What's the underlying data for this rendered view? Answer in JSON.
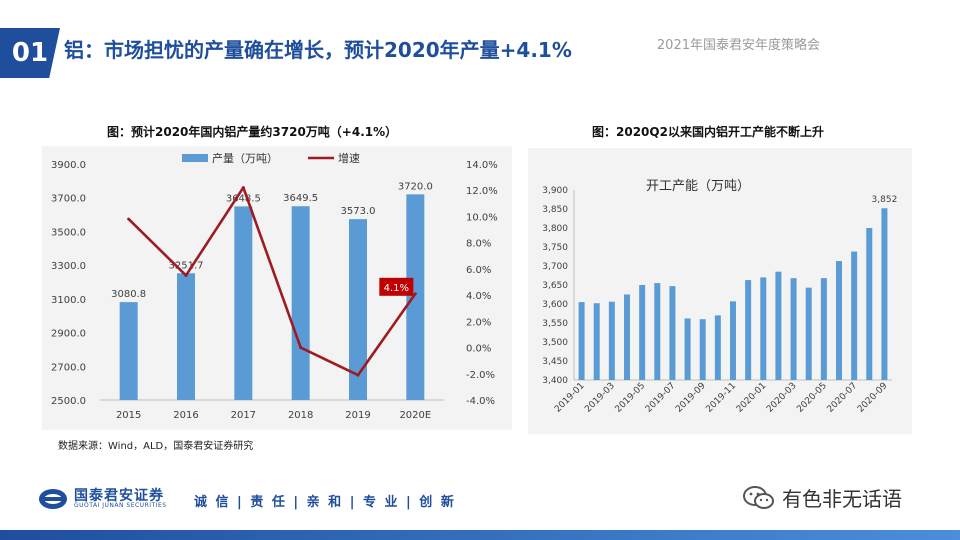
{
  "header": {
    "section_number": "01",
    "title": "铝：市场担忧的产量确在增长，预计2020年产量+4.1%",
    "conference": "2021年国泰君安年度策略会"
  },
  "colors": {
    "brand": "#1f4e9c",
    "bar": "#5b9bd5",
    "line": "#9e1b20",
    "callout": "#c00000"
  },
  "chart_data": [
    {
      "type": "bar+line",
      "title": "图：预计2020年国内铝产量约3720万吨（+4.1%）",
      "categories": [
        "2015",
        "2016",
        "2017",
        "2018",
        "2019",
        "2020E"
      ],
      "series": [
        {
          "name": "产量（万吨）",
          "type": "bar",
          "axis": "left",
          "values": [
            3080.8,
            3251.7,
            3648.5,
            3649.5,
            3573.0,
            3720.0
          ],
          "labels": [
            "3080.8",
            "3251.7",
            "3648.5",
            "3649.5",
            "3573.0",
            "3720.0"
          ]
        },
        {
          "name": "增速",
          "type": "line",
          "axis": "right",
          "values": [
            9.8,
            5.5,
            12.2,
            0.0,
            -2.1,
            4.1
          ]
        }
      ],
      "left_axis": {
        "ylim": [
          2500,
          3900
        ],
        "ticks": [
          "2500.0",
          "2700.0",
          "2900.0",
          "3100.0",
          "3300.0",
          "3500.0",
          "3700.0",
          "3900.0"
        ]
      },
      "right_axis": {
        "ylim": [
          -4,
          14
        ],
        "ticks": [
          "-4.0%",
          "-2.0%",
          "0.0%",
          "2.0%",
          "4.0%",
          "6.0%",
          "8.0%",
          "10.0%",
          "12.0%",
          "14.0%"
        ]
      },
      "annotation": {
        "text": "4.1%",
        "category": "2020E"
      },
      "legend": "top"
    },
    {
      "type": "bar",
      "title": "图：2020Q2以来国内铝开工产能不断上升",
      "series_label": "开工产能（万吨）",
      "categories": [
        "2019-01",
        "2019-02",
        "2019-03",
        "2019-04",
        "2019-05",
        "2019-06",
        "2019-07",
        "2019-08",
        "2019-09",
        "2019-10",
        "2019-11",
        "2019-12",
        "2020-01",
        "2020-02",
        "2020-03",
        "2020-04",
        "2020-05",
        "2020-06",
        "2020-07",
        "2020-08",
        "2020-09"
      ],
      "tick_labels": [
        "2019-01",
        "2019-03",
        "2019-05",
        "2019-07",
        "2019-09",
        "2019-11",
        "2020-01",
        "2020-03",
        "2020-05",
        "2020-07",
        "2020-09"
      ],
      "values": [
        3605,
        3602,
        3606,
        3625,
        3650,
        3655,
        3647,
        3562,
        3560,
        3570,
        3607,
        3663,
        3670,
        3685,
        3668,
        3643,
        3668,
        3713,
        3738,
        3800,
        3852
      ],
      "end_label": "3,852",
      "ylim": [
        3400,
        3900
      ],
      "ticks": [
        "3,400",
        "3,450",
        "3,500",
        "3,550",
        "3,600",
        "3,650",
        "3,700",
        "3,750",
        "3,800",
        "3,850",
        "3,900"
      ]
    }
  ],
  "source": "数据来源：Wind，ALD，国泰君安证券研究",
  "footer": {
    "logo_cn": "国泰君安证券",
    "logo_en": "GUOTAI JUNAN SECURITIES",
    "motto": "诚 信 | 责 任 | 亲 和 | 专 业 | 创 新",
    "wechat_name": "有色非无话语"
  }
}
